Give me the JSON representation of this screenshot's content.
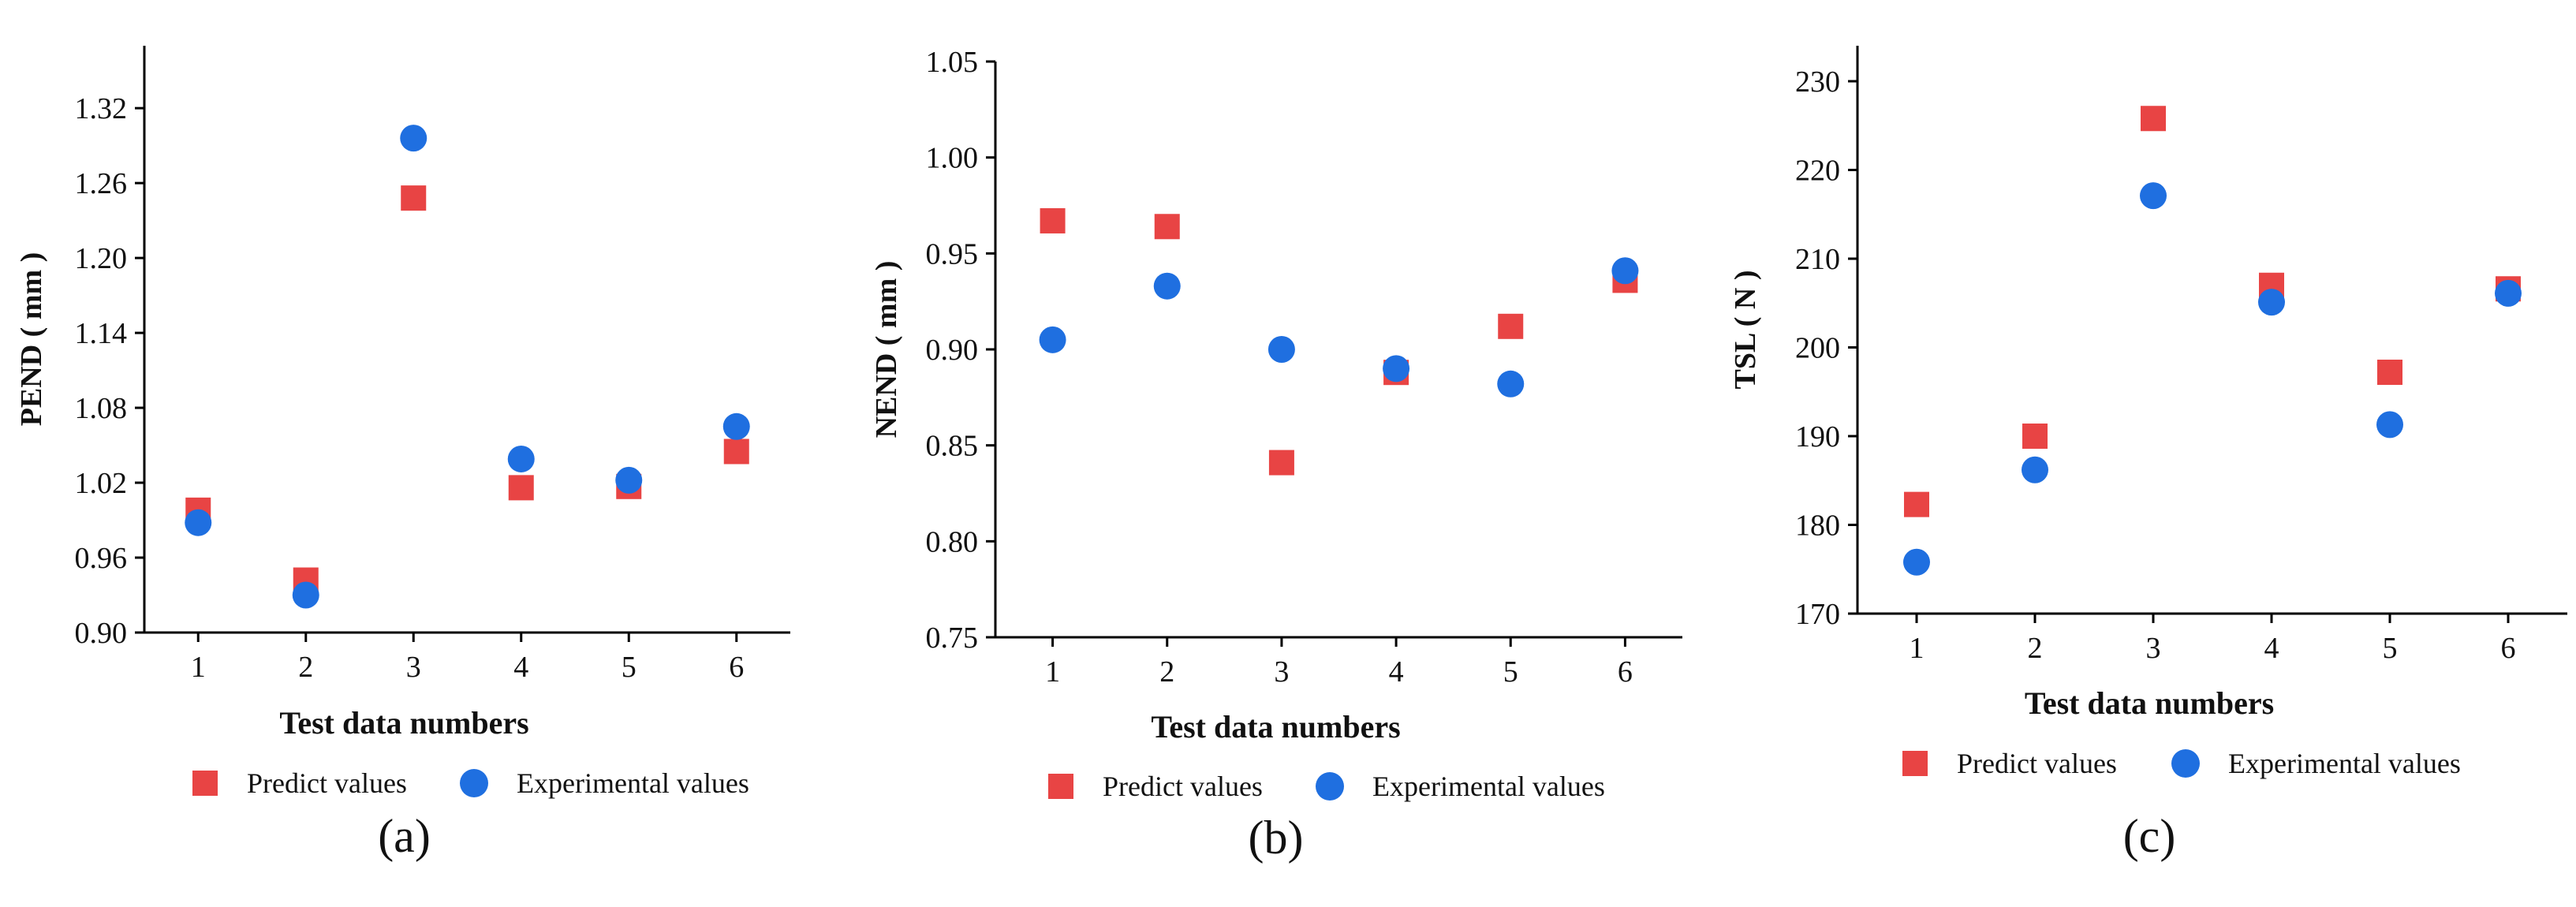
{
  "colors": {
    "predict": "#e84444",
    "experimental": "#1f6fe0"
  },
  "chart_data": [
    {
      "type": "scatter",
      "panel_label": "(a)",
      "xlabel": "Test data numbers",
      "ylabel": "PEND ( mm )",
      "categories": [
        "1",
        "2",
        "3",
        "4",
        "5",
        "6"
      ],
      "x": [
        1,
        2,
        3,
        4,
        5,
        6
      ],
      "xlim": [
        0.5,
        6.5
      ],
      "ylim": [
        0.9,
        1.37
      ],
      "yticks": [
        0.9,
        0.96,
        1.02,
        1.08,
        1.14,
        1.2,
        1.26,
        1.32
      ],
      "ytick_labels": [
        "0.90",
        "0.96",
        "1.02",
        "1.08",
        "1.14",
        "1.20",
        "1.26",
        "1.32"
      ],
      "series": [
        {
          "name": "Predict values",
          "marker": "square",
          "values": [
            0.998,
            0.942,
            1.248,
            1.016,
            1.017,
            1.045
          ]
        },
        {
          "name": "Experimental values",
          "marker": "circle",
          "values": [
            0.988,
            0.93,
            1.296,
            1.039,
            1.022,
            1.065
          ]
        }
      ],
      "legend": [
        "Predict values",
        "Experimental values"
      ]
    },
    {
      "type": "scatter",
      "panel_label": "(b)",
      "xlabel": "Test data numbers",
      "ylabel": "NEND ( mm )",
      "categories": [
        "1",
        "2",
        "3",
        "4",
        "5",
        "6"
      ],
      "x": [
        1,
        2,
        3,
        4,
        5,
        6
      ],
      "xlim": [
        0.5,
        6.5
      ],
      "ylim": [
        0.75,
        1.05
      ],
      "yticks": [
        0.75,
        0.8,
        0.85,
        0.9,
        0.95,
        1.0,
        1.05
      ],
      "ytick_labels": [
        "0.75",
        "0.80",
        "0.85",
        "0.90",
        "0.95",
        "1.00",
        "1.05"
      ],
      "series": [
        {
          "name": "Predict values",
          "marker": "square",
          "values": [
            0.967,
            0.964,
            0.841,
            0.888,
            0.912,
            0.936
          ]
        },
        {
          "name": "Experimental values",
          "marker": "circle",
          "values": [
            0.905,
            0.933,
            0.9,
            0.89,
            0.882,
            0.941
          ]
        }
      ],
      "legend": [
        "Predict values",
        "Experimental values"
      ]
    },
    {
      "type": "scatter",
      "panel_label": "(c)",
      "xlabel": "Test data numbers",
      "ylabel": "TSL ( N )",
      "categories": [
        "1",
        "2",
        "3",
        "4",
        "5",
        "6"
      ],
      "x": [
        1,
        2,
        3,
        4,
        5,
        6
      ],
      "xlim": [
        0.5,
        6.5
      ],
      "ylim": [
        170,
        234
      ],
      "yticks": [
        170,
        180,
        190,
        200,
        210,
        220,
        230
      ],
      "ytick_labels": [
        "170",
        "180",
        "190",
        "200",
        "210",
        "220",
        "230"
      ],
      "series": [
        {
          "name": "Predict values",
          "marker": "square",
          "values": [
            182.3,
            190.0,
            225.8,
            207.0,
            197.2,
            206.6
          ]
        },
        {
          "name": "Experimental values",
          "marker": "circle",
          "values": [
            175.8,
            186.2,
            217.1,
            205.1,
            191.3,
            206.1
          ]
        }
      ],
      "legend": [
        "Predict values",
        "Experimental values"
      ]
    }
  ]
}
